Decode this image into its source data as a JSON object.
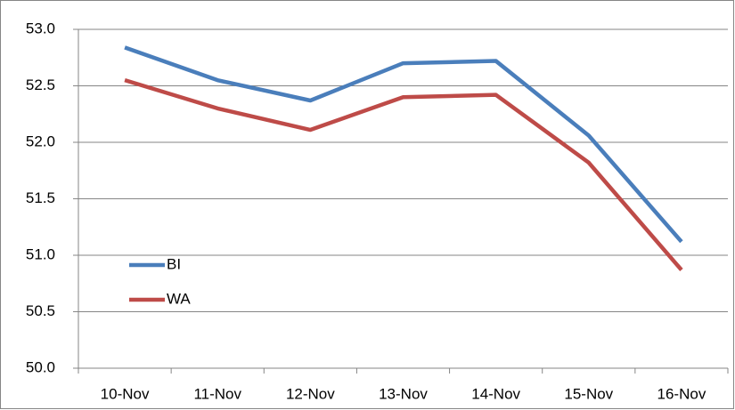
{
  "chart_data": {
    "type": "line",
    "categories": [
      "10-Nov",
      "11-Nov",
      "12-Nov",
      "13-Nov",
      "14-Nov",
      "15-Nov",
      "16-Nov"
    ],
    "series": [
      {
        "name": "BI",
        "color": "#4a7ebb",
        "values": [
          52.84,
          52.55,
          52.37,
          52.7,
          52.72,
          52.06,
          51.12
        ]
      },
      {
        "name": "WA",
        "color": "#be4b48",
        "values": [
          52.55,
          52.3,
          52.11,
          52.4,
          52.42,
          51.82,
          50.87
        ]
      }
    ],
    "ylim": [
      50,
      53
    ],
    "yticks": [
      {
        "value": 50,
        "label": "50.0"
      },
      50.5,
      {
        "value": 51,
        "label": "51.0"
      },
      51.5,
      {
        "value": 52,
        "label": "52.0"
      },
      52.5,
      {
        "value": 53,
        "label": "53.0"
      }
    ],
    "grid": true,
    "legend": "lower left"
  }
}
